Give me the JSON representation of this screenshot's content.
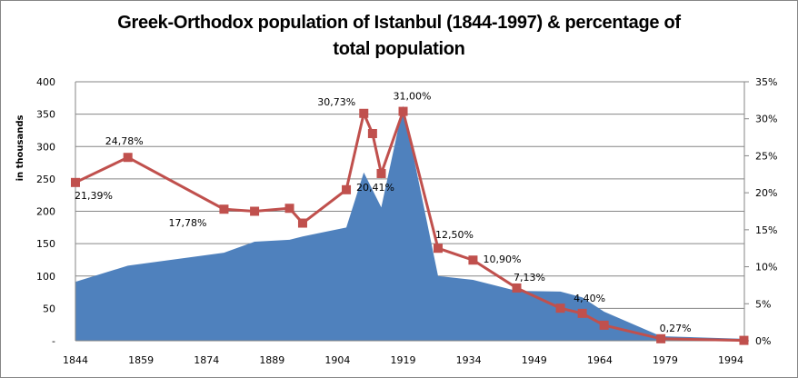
{
  "chart_data": {
    "type": "area+line",
    "title": "Greek-Orthodox population of Istanbul (1844-1997) & percentage of total population",
    "ylabel": "in thousands",
    "ylim": [
      0,
      400
    ],
    "y_ticks": [
      "-",
      "50",
      "100",
      "150",
      "200",
      "250",
      "300",
      "350",
      "400"
    ],
    "y2lim": [
      0,
      35
    ],
    "y2_ticks": [
      "0%",
      "5%",
      "10%",
      "15%",
      "20%",
      "25%",
      "30%",
      "35%"
    ],
    "xlim": [
      1844,
      1997
    ],
    "x_ticks": [
      "1844",
      "1859",
      "1874",
      "1889",
      "1904",
      "1919",
      "1934",
      "1949",
      "1964",
      "1979",
      "1994"
    ],
    "grid": "horizontal",
    "colors": {
      "area": "#4F81BD",
      "line": "#C0504D"
    },
    "series": [
      {
        "type": "area",
        "axis": "left",
        "x": [
          1844,
          1856,
          1878,
          1885,
          1893,
          1896,
          1906,
          1910,
          1914,
          1919,
          1927,
          1935,
          1945,
          1955,
          1960,
          1965,
          1978,
          1997
        ],
        "values": [
          91,
          116,
          136,
          153,
          156,
          161,
          175,
          260,
          206,
          363,
          100,
          94,
          77,
          76,
          67,
          45,
          7,
          3
        ]
      },
      {
        "type": "line",
        "axis": "right",
        "x": [
          1844,
          1856,
          1878,
          1885,
          1893,
          1896,
          1906,
          1910,
          1912,
          1914,
          1919,
          1927,
          1935,
          1945,
          1955,
          1960,
          1965,
          1978,
          1997
        ],
        "values": [
          21.39,
          24.78,
          17.78,
          17.5,
          17.9,
          15.9,
          20.41,
          30.73,
          28.0,
          22.6,
          31.0,
          12.5,
          10.9,
          7.13,
          4.4,
          3.7,
          2.1,
          0.27,
          0.05
        ],
        "labels": [
          "21,39%",
          "24,78%",
          "17,78%",
          null,
          null,
          null,
          "20,41%",
          "30,73%",
          null,
          null,
          "31,00%",
          "12,50%",
          "10,90%",
          "7,13%",
          "4,40%",
          null,
          null,
          "0,27%",
          null
        ]
      }
    ]
  }
}
